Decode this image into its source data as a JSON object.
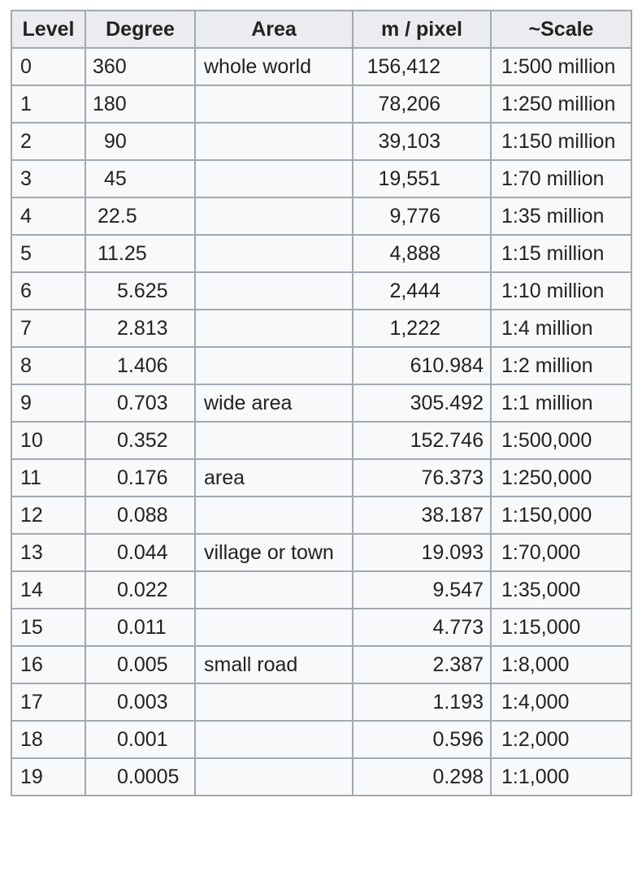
{
  "table": {
    "headers": [
      "Level",
      "Degree",
      "Area",
      "m / pixel",
      "~Scale"
    ],
    "rows": [
      {
        "level": "0",
        "degree": "360",
        "area": "whole world",
        "mpx": "156,412",
        "scale": "1:500 million"
      },
      {
        "level": "1",
        "degree": "180",
        "area": "",
        "mpx": "78,206",
        "scale": "1:250 million"
      },
      {
        "level": "2",
        "degree": "90",
        "area": "",
        "mpx": "39,103",
        "scale": "1:150 million"
      },
      {
        "level": "3",
        "degree": "45",
        "area": "",
        "mpx": "19,551",
        "scale": "1:70 million"
      },
      {
        "level": "4",
        "degree": "22.5",
        "area": "",
        "mpx": "9,776",
        "scale": "1:35 million"
      },
      {
        "level": "5",
        "degree": "11.25",
        "area": "",
        "mpx": "4,888",
        "scale": "1:15 million"
      },
      {
        "level": "6",
        "degree": "5.625",
        "area": "",
        "mpx": "2,444",
        "scale": "1:10 million"
      },
      {
        "level": "7",
        "degree": "2.813",
        "area": "",
        "mpx": "1,222",
        "scale": "1:4 million"
      },
      {
        "level": "8",
        "degree": "1.406",
        "area": "",
        "mpx": "610.984",
        "scale": "1:2 million"
      },
      {
        "level": "9",
        "degree": "0.703",
        "area": "wide area",
        "mpx": "305.492",
        "scale": "1:1 million"
      },
      {
        "level": "10",
        "degree": "0.352",
        "area": "",
        "mpx": "152.746",
        "scale": "1:500,000"
      },
      {
        "level": "11",
        "degree": "0.176",
        "area": "area",
        "mpx": "76.373",
        "scale": "1:250,000"
      },
      {
        "level": "12",
        "degree": "0.088",
        "area": "",
        "mpx": "38.187",
        "scale": "1:150,000"
      },
      {
        "level": "13",
        "degree": "0.044",
        "area": "village or town",
        "mpx": "19.093",
        "scale": "1:70,000"
      },
      {
        "level": "14",
        "degree": "0.022",
        "area": "",
        "mpx": "9.547",
        "scale": "1:35,000"
      },
      {
        "level": "15",
        "degree": "0.011",
        "area": "",
        "mpx": "4.773",
        "scale": "1:15,000"
      },
      {
        "level": "16",
        "degree": "0.005",
        "area": "small road",
        "mpx": "2.387",
        "scale": "1:8,000"
      },
      {
        "level": "17",
        "degree": "0.003",
        "area": "",
        "mpx": "1.193",
        "scale": "1:4,000"
      },
      {
        "level": "18",
        "degree": "0.001",
        "area": "",
        "mpx": "0.596",
        "scale": "1:2,000"
      },
      {
        "level": "19",
        "degree": "0.0005",
        "area": "",
        "mpx": "0.298",
        "scale": "1:1,000"
      }
    ]
  }
}
